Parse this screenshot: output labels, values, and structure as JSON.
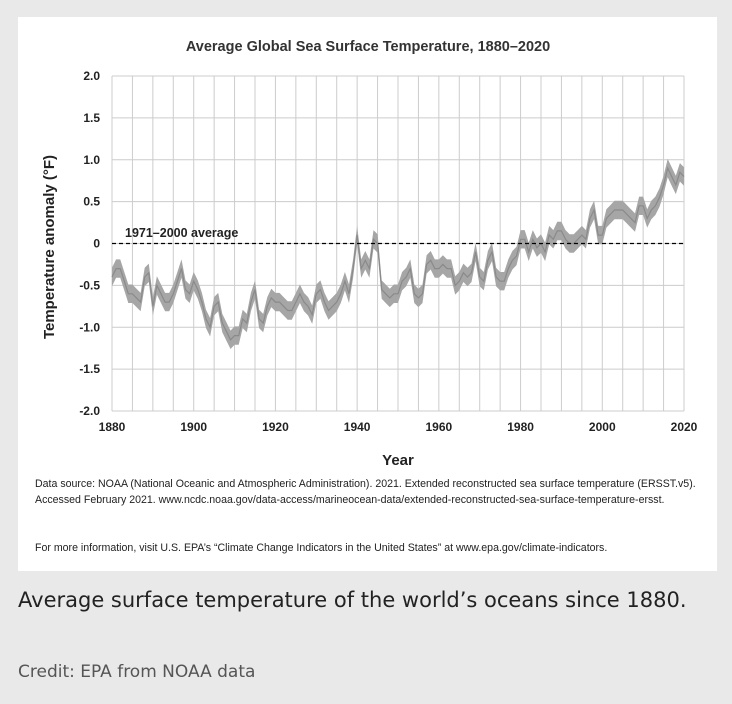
{
  "chart_data": {
    "type": "line",
    "title": "Average Global Sea Surface Temperature, 1880–2020",
    "xlabel": "Year",
    "ylabel": "Temperature anomaly (°F)",
    "xlim": [
      1880,
      2020
    ],
    "ylim": [
      -2.0,
      2.0
    ],
    "x_ticks": [
      "1880",
      "1900",
      "1920",
      "1940",
      "1960",
      "1980",
      "2000",
      "2020"
    ],
    "y_ticks": [
      "2.0",
      "1.5",
      "1.0",
      "0.5",
      "0",
      "-0.5",
      "-1.0",
      "-1.5",
      "-2.0"
    ],
    "grid": true,
    "reference_line": {
      "label": "1971–2000 average",
      "y": 0
    },
    "colors": {
      "band": "#a6a6a6",
      "line": "#8a8a8a",
      "grid": "#cccccc",
      "reference": "#000000"
    },
    "series": [
      {
        "x": [
          1880,
          1881,
          1882,
          1883,
          1884,
          1885,
          1886,
          1887,
          1888,
          1889,
          1890,
          1891,
          1892,
          1893,
          1894,
          1895,
          1896,
          1897,
          1898,
          1899,
          1900,
          1901,
          1902,
          1903,
          1904,
          1905,
          1906,
          1907,
          1908,
          1909,
          1910,
          1911,
          1912,
          1913,
          1914,
          1915,
          1916,
          1917,
          1918,
          1919,
          1920,
          1921,
          1922,
          1923,
          1924,
          1925,
          1926,
          1927,
          1928,
          1929,
          1930,
          1931,
          1932,
          1933,
          1934,
          1935,
          1936,
          1937,
          1938,
          1939,
          1940,
          1941,
          1942,
          1943,
          1944,
          1945,
          1946,
          1947,
          1948,
          1949,
          1950,
          1951,
          1952,
          1953,
          1954,
          1955,
          1956,
          1957,
          1958,
          1959,
          1960,
          1961,
          1962,
          1963,
          1964,
          1965,
          1966,
          1967,
          1968,
          1969,
          1970,
          1971,
          1972,
          1973,
          1974,
          1975,
          1976,
          1977,
          1978,
          1979,
          1980,
          1981,
          1982,
          1983,
          1984,
          1985,
          1986,
          1987,
          1988,
          1989,
          1990,
          1991,
          1992,
          1993,
          1994,
          1995,
          1996,
          1997,
          1998,
          1999,
          2000,
          2001,
          2002,
          2003,
          2004,
          2005,
          2006,
          2007,
          2008,
          2009,
          2010,
          2011,
          2012,
          2013,
          2014,
          2015,
          2016,
          2017,
          2018,
          2019,
          2020
        ],
        "y": [
          -0.4,
          -0.3,
          -0.3,
          -0.45,
          -0.6,
          -0.6,
          -0.65,
          -0.7,
          -0.4,
          -0.35,
          -0.75,
          -0.5,
          -0.6,
          -0.7,
          -0.7,
          -0.6,
          -0.45,
          -0.3,
          -0.55,
          -0.6,
          -0.45,
          -0.55,
          -0.7,
          -0.9,
          -1.0,
          -0.75,
          -0.7,
          -0.95,
          -1.05,
          -1.15,
          -1.1,
          -1.1,
          -0.9,
          -0.95,
          -0.7,
          -0.55,
          -0.9,
          -0.95,
          -0.75,
          -0.65,
          -0.7,
          -0.7,
          -0.75,
          -0.8,
          -0.8,
          -0.7,
          -0.6,
          -0.7,
          -0.75,
          -0.85,
          -0.6,
          -0.55,
          -0.7,
          -0.8,
          -0.75,
          -0.7,
          -0.6,
          -0.45,
          -0.6,
          -0.3,
          0.1,
          -0.3,
          -0.2,
          -0.3,
          0.05,
          0.0,
          -0.55,
          -0.6,
          -0.65,
          -0.6,
          -0.6,
          -0.45,
          -0.4,
          -0.3,
          -0.6,
          -0.65,
          -0.6,
          -0.25,
          -0.2,
          -0.3,
          -0.3,
          -0.25,
          -0.3,
          -0.3,
          -0.5,
          -0.45,
          -0.35,
          -0.4,
          -0.35,
          -0.1,
          -0.4,
          -0.45,
          -0.2,
          -0.1,
          -0.4,
          -0.45,
          -0.45,
          -0.3,
          -0.2,
          -0.15,
          0.05,
          0.05,
          -0.1,
          0.05,
          -0.05,
          0.0,
          -0.1,
          0.1,
          0.05,
          0.15,
          0.15,
          0.05,
          0.0,
          0.0,
          0.05,
          0.1,
          0.05,
          0.3,
          0.4,
          0.1,
          0.1,
          0.3,
          0.35,
          0.4,
          0.4,
          0.4,
          0.35,
          0.3,
          0.25,
          0.45,
          0.45,
          0.3,
          0.4,
          0.45,
          0.55,
          0.7,
          0.9,
          0.8,
          0.7,
          0.85,
          0.8
        ]
      }
    ]
  },
  "source_text": "Data source: NOAA (National Oceanic and Atmospheric Administration). 2021. Extended reconstructed sea surface temperature (ERSST.v5). Accessed February 2021. www.ncdc.noaa.gov/data-access/marineocean-data/extended-reconstructed-sea-surface-temperature-ersst.",
  "more_info_text": "For more information, visit U.S. EPA’s “Climate Change Indicators in the United States” at www.epa.gov/climate-indicators.",
  "caption": "Average surface temperature of the world’s oceans since 1880.",
  "credit": {
    "label": "Credit:",
    "value": "EPA from NOAA data"
  }
}
